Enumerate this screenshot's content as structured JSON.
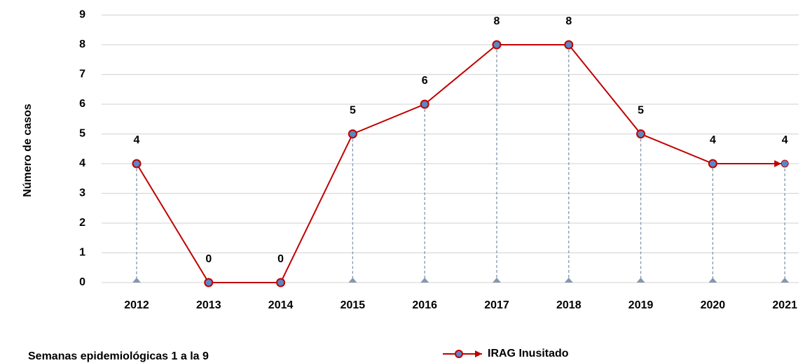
{
  "chart_data": {
    "type": "line",
    "ylabel": "Número de casos",
    "annotation": "Semanas epidemiológicas 1 a la 9",
    "categories": [
      "2012",
      "2013",
      "2014",
      "2015",
      "2016",
      "2017",
      "2018",
      "2019",
      "2020",
      "2021"
    ],
    "series": [
      {
        "name": "IRAG Inusitado",
        "color": "#c00000",
        "marker_color": "#5b87c5",
        "values": [
          4,
          0,
          0,
          5,
          6,
          8,
          8,
          5,
          4,
          4
        ]
      }
    ],
    "ylim": [
      0,
      9
    ],
    "yticks": [
      0,
      1,
      2,
      3,
      4,
      5,
      6,
      7,
      8,
      9
    ],
    "grid": true
  }
}
